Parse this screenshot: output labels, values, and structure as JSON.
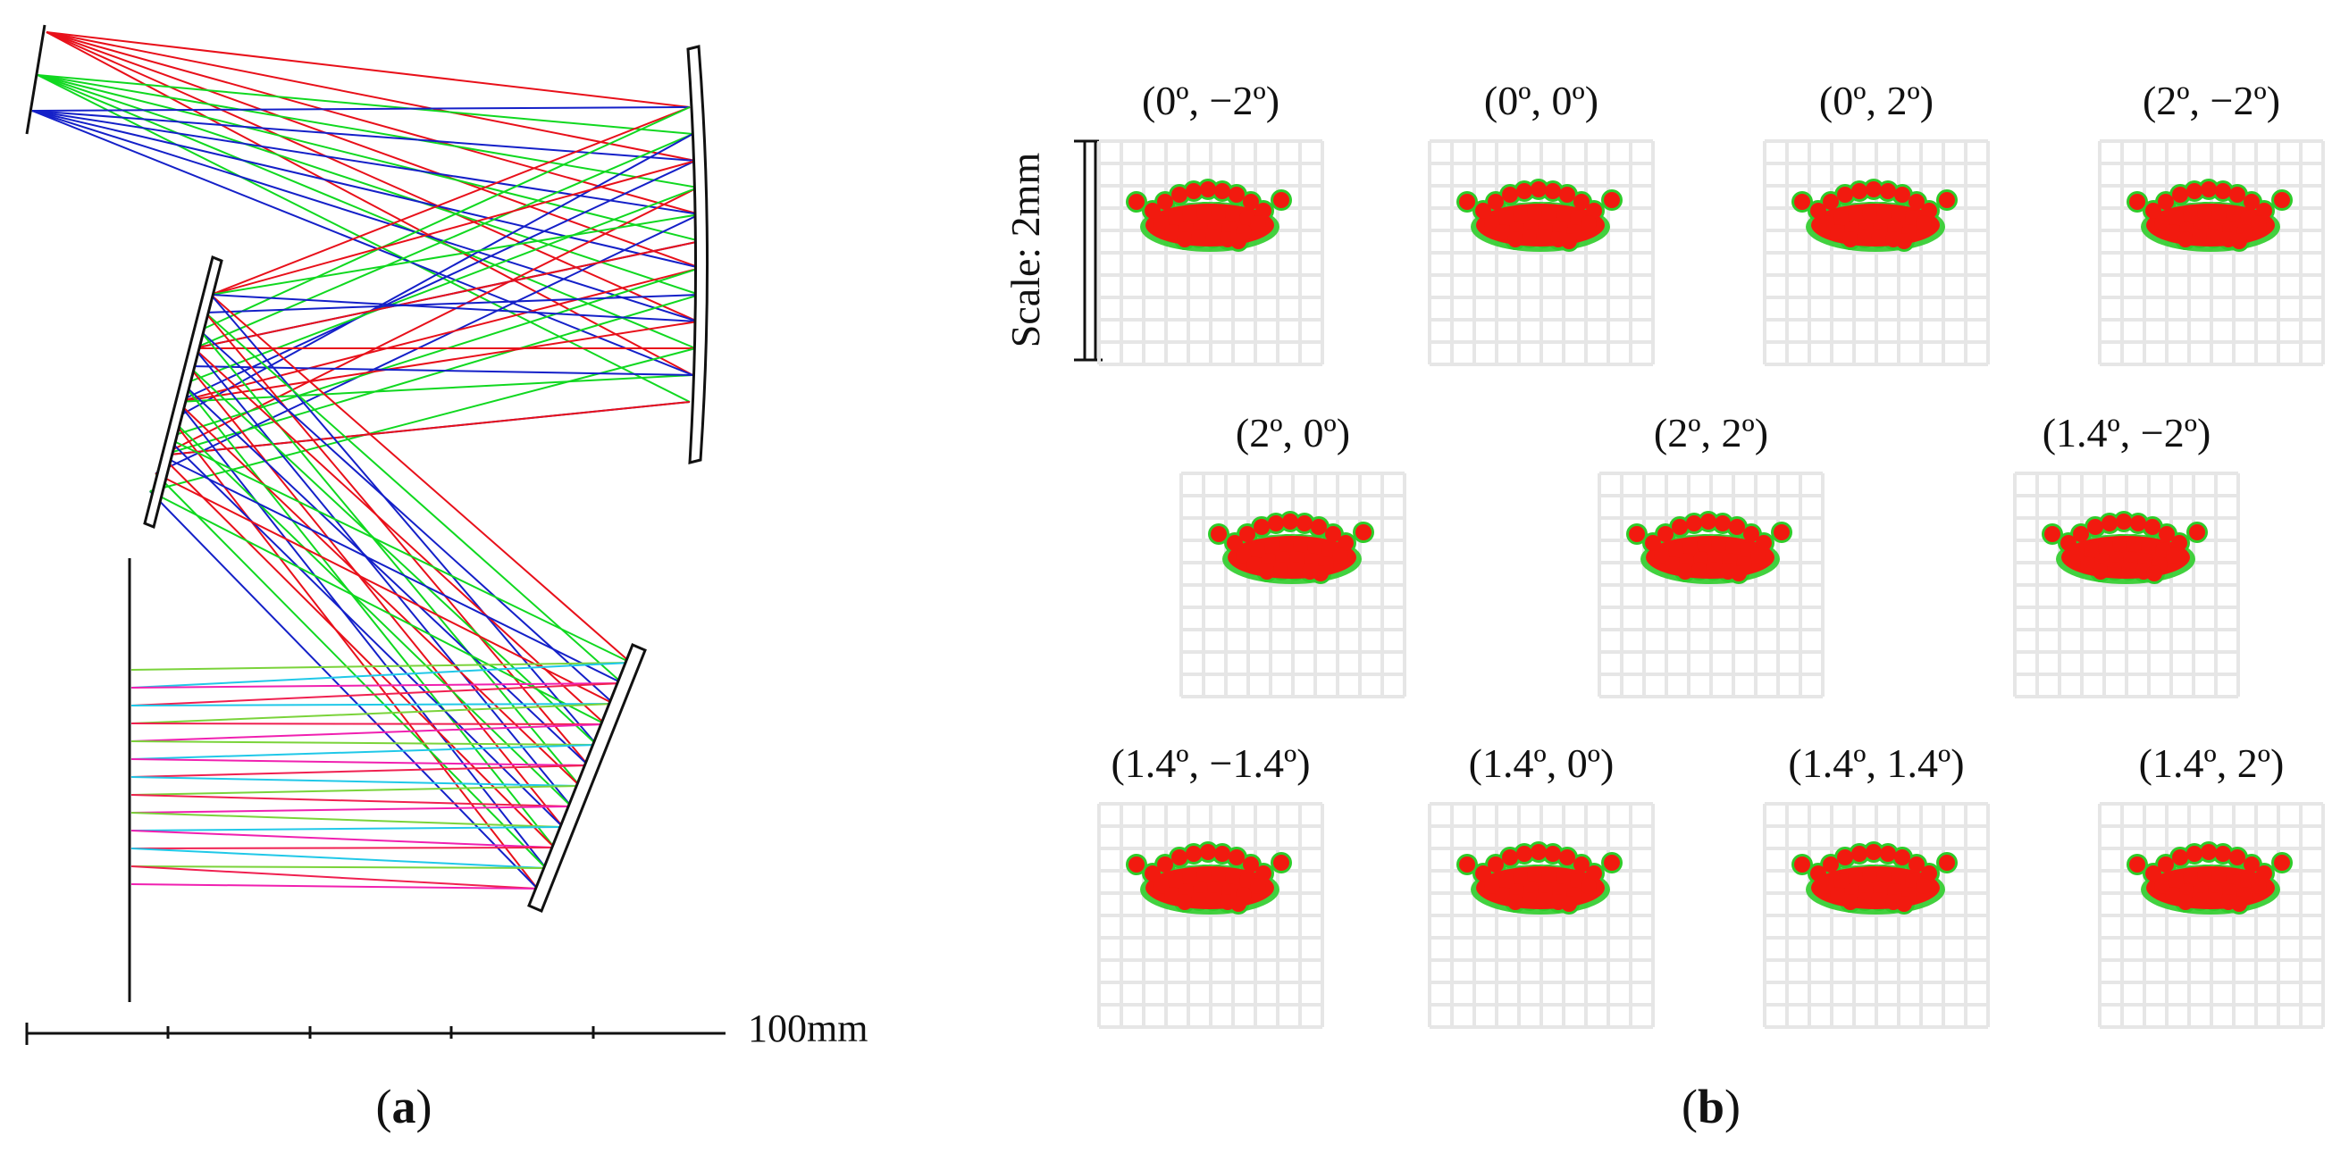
{
  "panel_a": {
    "caption_open": "(",
    "caption_letter": "a",
    "caption_close": ")",
    "scale_label": "100mm",
    "ray_colors": [
      "#e8101a",
      "#10d820",
      "#1420c8"
    ],
    "image_ray_colors": [
      "#7ad33a",
      "#f020b0",
      "#20c8e8",
      "#f02050"
    ]
  },
  "panel_b": {
    "caption_open": "(",
    "caption_letter": "b",
    "caption_close": ")",
    "scale_label": "Scale: 2mm",
    "spot_color": "#f21a0f",
    "spot_edge_color": "#2ecc2a",
    "grid_color": "#e6e6e6",
    "spots": [
      {
        "label": "(0º,  −2º)"
      },
      {
        "label": "(0º, 0º)"
      },
      {
        "label": "(0º, 2º)"
      },
      {
        "label": "(2º, −2º)"
      },
      {
        "label": "(2º, 0º)"
      },
      {
        "label": "(2º, 2º)"
      },
      {
        "label": "(1.4º, −2º)"
      },
      {
        "label": "(1.4º, −1.4º)"
      },
      {
        "label": "(1.4º, 0º)"
      },
      {
        "label": "(1.4º, 1.4º)"
      },
      {
        "label": "(1.4º, 2º)"
      }
    ]
  }
}
